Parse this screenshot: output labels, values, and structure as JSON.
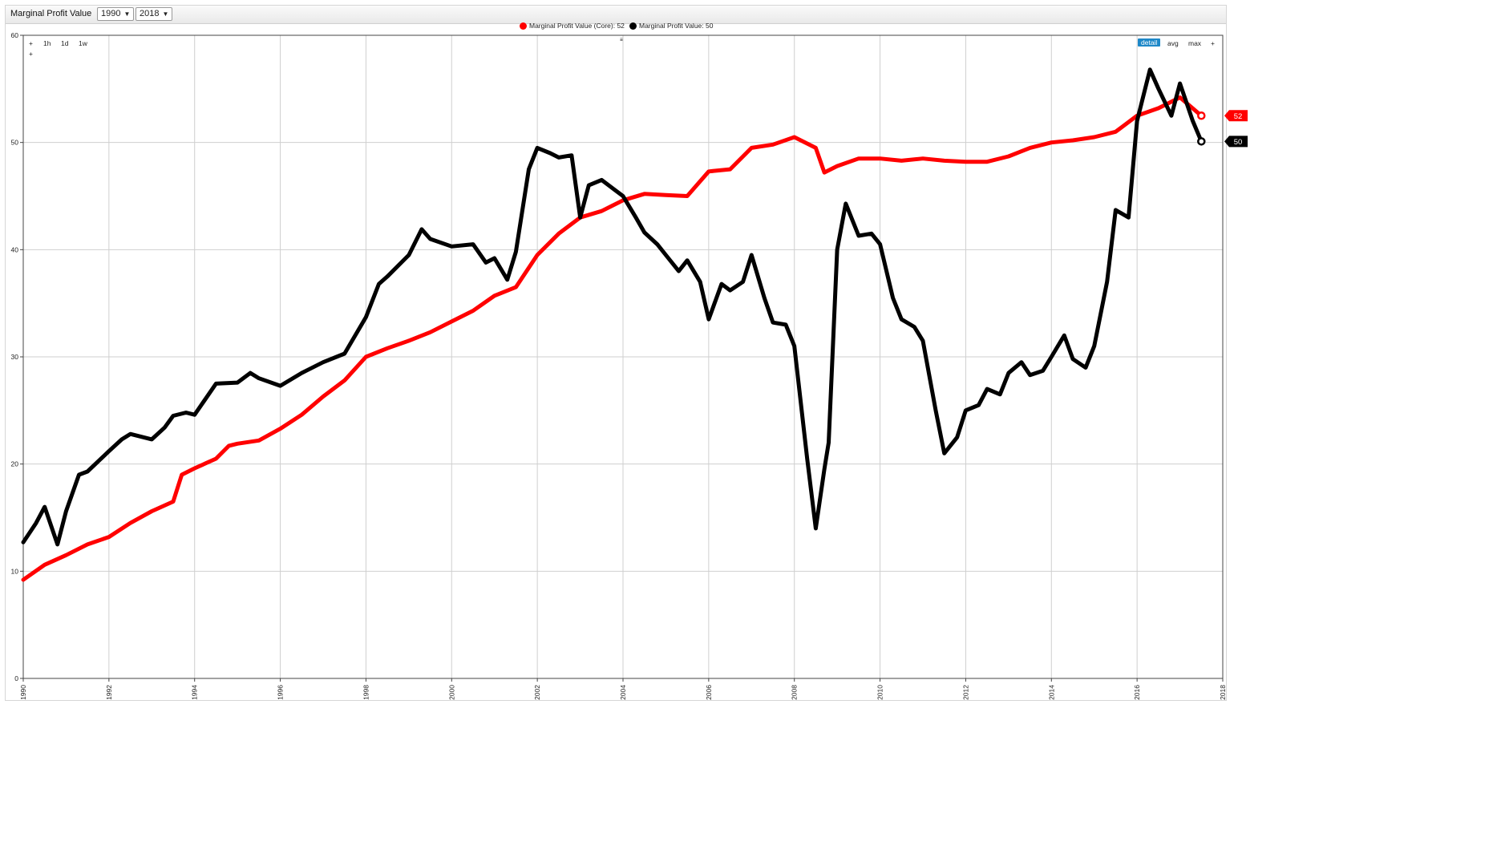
{
  "header": {
    "title": "Marginal Profit Value",
    "start_year": "1990",
    "end_year": "2018"
  },
  "legend": [
    {
      "label": "Marginal Profit Value (Core): 52",
      "color": "#ff0000"
    },
    {
      "label": "Marginal Profit Value: 50",
      "color": "#000000"
    }
  ],
  "controls": {
    "left": [
      "+",
      "1h",
      "1d",
      "1w",
      "+"
    ],
    "right": [
      "detail",
      "avg",
      "max",
      "+"
    ],
    "active": "detail",
    "splitter": "≡"
  },
  "badges": {
    "core": "52",
    "value": "50"
  },
  "chart_data": {
    "type": "line",
    "xlim": [
      1990,
      2018
    ],
    "ylim": [
      0,
      60
    ],
    "grid": true,
    "legend_position": "top-center",
    "x_ticks": [
      "1990",
      "1992",
      "1994",
      "1996",
      "1998",
      "2000",
      "2002",
      "2004",
      "2006",
      "2008",
      "2010",
      "2012",
      "2014",
      "2016",
      "2018"
    ],
    "y_ticks": [
      "0",
      "10",
      "20",
      "30",
      "40",
      "50",
      "60"
    ],
    "series": [
      {
        "name": "Marginal Profit Value (Core)",
        "color": "#ff0000",
        "x": [
          1990.0,
          1990.5,
          1991.0,
          1991.5,
          1992.0,
          1992.5,
          1993.0,
          1993.5,
          1993.7,
          1994.0,
          1994.5,
          1994.8,
          1995.0,
          1995.5,
          1996.0,
          1996.5,
          1997.0,
          1997.5,
          1998.0,
          1998.5,
          1999.0,
          1999.5,
          2000.0,
          2000.5,
          2001.0,
          2001.5,
          2002.0,
          2002.5,
          2003.0,
          2003.5,
          2004.0,
          2004.5,
          2005.0,
          2005.5,
          2006.0,
          2006.5,
          2007.0,
          2007.5,
          2008.0,
          2008.5,
          2008.7,
          2009.0,
          2009.5,
          2010.0,
          2010.5,
          2011.0,
          2011.5,
          2012.0,
          2012.5,
          2013.0,
          2013.5,
          2014.0,
          2014.5,
          2015.0,
          2015.5,
          2016.0,
          2016.5,
          2017.0,
          2017.5
        ],
        "y": [
          9.2,
          10.6,
          11.5,
          12.5,
          13.2,
          14.5,
          15.6,
          16.5,
          19.0,
          19.6,
          20.5,
          21.7,
          21.9,
          22.2,
          23.3,
          24.6,
          26.3,
          27.8,
          30.0,
          30.8,
          31.5,
          32.3,
          33.3,
          34.3,
          35.7,
          36.5,
          39.5,
          41.5,
          43.0,
          43.6,
          44.6,
          45.2,
          45.1,
          45.0,
          47.3,
          47.5,
          49.5,
          49.8,
          50.5,
          49.5,
          47.2,
          47.8,
          48.5,
          48.5,
          48.3,
          48.5,
          48.3,
          48.2,
          48.2,
          48.7,
          49.5,
          50.0,
          50.2,
          50.5,
          51.0,
          52.5,
          53.2,
          54.2,
          52.5
        ]
      },
      {
        "name": "Marginal Profit Value",
        "color": "#000000",
        "x": [
          1990.0,
          1990.3,
          1990.5,
          1990.8,
          1991.0,
          1991.3,
          1991.5,
          1992.0,
          1992.3,
          1992.5,
          1993.0,
          1993.3,
          1993.5,
          1993.8,
          1994.0,
          1994.5,
          1995.0,
          1995.3,
          1995.5,
          1996.0,
          1996.5,
          1997.0,
          1997.5,
          1998.0,
          1998.3,
          1998.5,
          1999.0,
          1999.3,
          1999.5,
          2000.0,
          2000.5,
          2000.8,
          2001.0,
          2001.3,
          2001.5,
          2001.8,
          2002.0,
          2002.3,
          2002.5,
          2002.8,
          2003.0,
          2003.2,
          2003.5,
          2003.8,
          2004.0,
          2004.3,
          2004.5,
          2004.8,
          2005.0,
          2005.3,
          2005.5,
          2005.8,
          2006.0,
          2006.3,
          2006.5,
          2006.8,
          2007.0,
          2007.3,
          2007.5,
          2007.8,
          2008.0,
          2008.3,
          2008.5,
          2008.7,
          2008.8,
          2009.0,
          2009.2,
          2009.5,
          2009.8,
          2010.0,
          2010.3,
          2010.5,
          2010.8,
          2011.0,
          2011.3,
          2011.5,
          2011.8,
          2012.0,
          2012.3,
          2012.5,
          2012.8,
          2013.0,
          2013.3,
          2013.5,
          2013.8,
          2014.0,
          2014.3,
          2014.5,
          2014.8,
          2015.0,
          2015.3,
          2015.5,
          2015.8,
          2016.0,
          2016.3,
          2016.5,
          2016.8,
          2017.0,
          2017.3,
          2017.5
        ],
        "y": [
          12.7,
          14.5,
          16.0,
          12.5,
          15.6,
          19.0,
          19.3,
          21.2,
          22.3,
          22.8,
          22.3,
          23.4,
          24.5,
          24.8,
          24.6,
          27.5,
          27.6,
          28.5,
          28.0,
          27.3,
          28.5,
          29.5,
          30.3,
          33.7,
          36.8,
          37.5,
          39.5,
          41.9,
          41.0,
          40.3,
          40.5,
          38.8,
          39.2,
          37.2,
          39.8,
          47.5,
          49.5,
          49.0,
          48.6,
          48.8,
          43.0,
          46.0,
          46.5,
          45.6,
          45.0,
          43.0,
          41.6,
          40.5,
          39.5,
          38.0,
          39.0,
          37.0,
          33.5,
          36.8,
          36.2,
          37.0,
          39.5,
          35.5,
          33.2,
          33.0,
          31.0,
          20.5,
          14.0,
          19.5,
          22.0,
          40.0,
          44.3,
          41.3,
          41.5,
          40.5,
          35.5,
          33.5,
          32.8,
          31.5,
          25.0,
          21.0,
          22.5,
          25.0,
          25.5,
          27.0,
          26.5,
          28.5,
          29.5,
          28.3,
          28.7,
          30.0,
          32.0,
          29.8,
          29.0,
          31.0,
          37.0,
          43.7,
          43.0,
          52.0,
          56.8,
          55.0,
          52.5,
          55.5,
          52.0,
          50.1
        ]
      }
    ]
  }
}
